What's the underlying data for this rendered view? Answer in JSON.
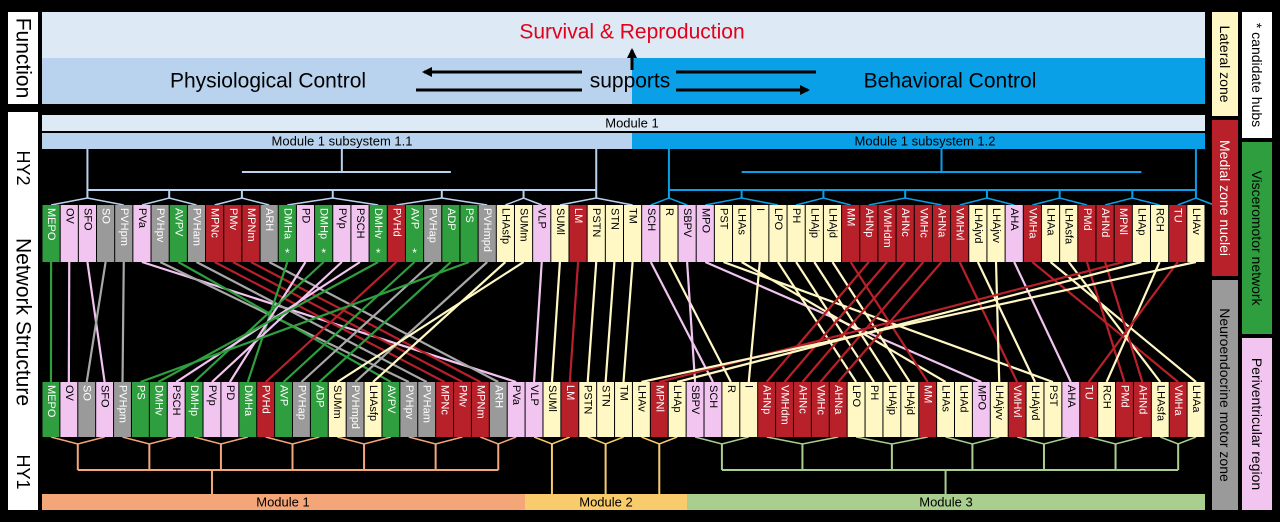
{
  "function_panel": {
    "side_label": "Function",
    "title": "Survival & Reproduction",
    "left": "Physiological Control",
    "middle": "supports",
    "right": "Behavioral Control"
  },
  "network_labels": {
    "hy2": "HY2",
    "network_structure": "Network Structure",
    "hy1": "HY1"
  },
  "hy2_modules": {
    "module": "Module 1",
    "sub1": "Module 1 subsystem 1.1",
    "sub2": "Module 1 subsystem 1.2"
  },
  "hy1_modules": {
    "m1": "Module 1",
    "m2": "Module 2",
    "m3": "Module 3"
  },
  "legend": {
    "candidate_hubs": "* candidate hubs",
    "lateral": "Lateral zone",
    "medial": "Medial zone nuclei",
    "visceromotor": "Visceromotor network",
    "neuroendocrine": "Neuroendocrine motor zone",
    "periventricular": "Periventricular region"
  },
  "colors": {
    "green": "#2e9e3e",
    "pink": "#f2c4f0",
    "gray": "#9a9a9a",
    "red": "#b8202a",
    "cream": "#fff8c4",
    "blue_light": "#b9d3ee",
    "blue_dark": "#0aa0e8",
    "orange": "#f5a679",
    "yellow": "#f8cc6a",
    "sage": "#a8cf8e"
  },
  "hy2_nodes": [
    {
      "name": "MEPO",
      "c": "g"
    },
    {
      "name": "OV",
      "c": "p"
    },
    {
      "name": "SFO",
      "c": "p"
    },
    {
      "name": "SO",
      "c": "a"
    },
    {
      "name": "PVHpm",
      "c": "a"
    },
    {
      "name": "PVa",
      "c": "p"
    },
    {
      "name": "PVHpv",
      "c": "a"
    },
    {
      "name": "AVPV",
      "c": "g"
    },
    {
      "name": "PVHam",
      "c": "a"
    },
    {
      "name": "MPNc",
      "c": "r"
    },
    {
      "name": "PMv",
      "c": "r"
    },
    {
      "name": "MPNm",
      "c": "r"
    },
    {
      "name": "ARH",
      "c": "a"
    },
    {
      "name": "DMHa",
      "c": "g",
      "hub": true
    },
    {
      "name": "PD",
      "c": "p"
    },
    {
      "name": "DMHp",
      "c": "g",
      "hub": true
    },
    {
      "name": "PVp",
      "c": "p"
    },
    {
      "name": "PSCH",
      "c": "p"
    },
    {
      "name": "DMHv",
      "c": "g",
      "hub": true
    },
    {
      "name": "PVHd",
      "c": "r"
    },
    {
      "name": "AVP",
      "c": "g",
      "hub": true
    },
    {
      "name": "PVHap",
      "c": "a"
    },
    {
      "name": "ADP",
      "c": "g"
    },
    {
      "name": "PS",
      "c": "g"
    },
    {
      "name": "PVHmpd",
      "c": "a"
    },
    {
      "name": "LHAsfp",
      "c": "y"
    },
    {
      "name": "SUMm",
      "c": "y"
    },
    {
      "name": "VLP",
      "c": "p"
    },
    {
      "name": "SUMl",
      "c": "y"
    },
    {
      "name": "LM",
      "c": "r"
    },
    {
      "name": "PSTN",
      "c": "y"
    },
    {
      "name": "STN",
      "c": "y"
    },
    {
      "name": "TM",
      "c": "y"
    },
    {
      "name": "SCH",
      "c": "p"
    },
    {
      "name": "R",
      "c": "y"
    },
    {
      "name": "SBPV",
      "c": "p"
    },
    {
      "name": "MPO",
      "c": "p"
    },
    {
      "name": "PST",
      "c": "y"
    },
    {
      "name": "LHAs",
      "c": "y"
    },
    {
      "name": "I",
      "c": "y"
    },
    {
      "name": "LPO",
      "c": "y"
    },
    {
      "name": "PH",
      "c": "y"
    },
    {
      "name": "LHAjp",
      "c": "y"
    },
    {
      "name": "LHAjd",
      "c": "y"
    },
    {
      "name": "MM",
      "c": "r"
    },
    {
      "name": "AHNp",
      "c": "r"
    },
    {
      "name": "VMHdm",
      "c": "r"
    },
    {
      "name": "AHNc",
      "c": "r"
    },
    {
      "name": "VMHc",
      "c": "r"
    },
    {
      "name": "AHNa",
      "c": "r"
    },
    {
      "name": "VMHvl",
      "c": "r"
    },
    {
      "name": "LHAjvd",
      "c": "y"
    },
    {
      "name": "LHAjvv",
      "c": "y"
    },
    {
      "name": "AHA",
      "c": "p"
    },
    {
      "name": "VMHa",
      "c": "r"
    },
    {
      "name": "LHAa",
      "c": "y"
    },
    {
      "name": "LHAsfa",
      "c": "y"
    },
    {
      "name": "PMd",
      "c": "r"
    },
    {
      "name": "AHNd",
      "c": "r"
    },
    {
      "name": "MPNl",
      "c": "r"
    },
    {
      "name": "LHAp",
      "c": "y"
    },
    {
      "name": "RCH",
      "c": "y"
    },
    {
      "name": "TU",
      "c": "r"
    },
    {
      "name": "LHAv",
      "c": "y"
    }
  ],
  "hy1_nodes": [
    {
      "name": "MEPO",
      "c": "g"
    },
    {
      "name": "OV",
      "c": "p"
    },
    {
      "name": "SO",
      "c": "a"
    },
    {
      "name": "SFO",
      "c": "p"
    },
    {
      "name": "PVHpm",
      "c": "a"
    },
    {
      "name": "PS",
      "c": "g"
    },
    {
      "name": "DMHv",
      "c": "g"
    },
    {
      "name": "PSCH",
      "c": "p"
    },
    {
      "name": "DMHp",
      "c": "g"
    },
    {
      "name": "PVp",
      "c": "p"
    },
    {
      "name": "PD",
      "c": "p"
    },
    {
      "name": "DMHa",
      "c": "g"
    },
    {
      "name": "PVHd",
      "c": "r"
    },
    {
      "name": "AVP",
      "c": "g"
    },
    {
      "name": "PVHap",
      "c": "a"
    },
    {
      "name": "ADP",
      "c": "g"
    },
    {
      "name": "SUMm",
      "c": "y"
    },
    {
      "name": "PVHmpd",
      "c": "a"
    },
    {
      "name": "LHAsfp",
      "c": "y"
    },
    {
      "name": "AVPV",
      "c": "g"
    },
    {
      "name": "PVHpv",
      "c": "a"
    },
    {
      "name": "PVHam",
      "c": "a"
    },
    {
      "name": "MPNc",
      "c": "r"
    },
    {
      "name": "PMv",
      "c": "r"
    },
    {
      "name": "MPNm",
      "c": "r"
    },
    {
      "name": "ARH",
      "c": "a"
    },
    {
      "name": "PVa",
      "c": "p"
    },
    {
      "name": "VLP",
      "c": "p"
    },
    {
      "name": "SUMl",
      "c": "y"
    },
    {
      "name": "LM",
      "c": "r"
    },
    {
      "name": "PSTN",
      "c": "y"
    },
    {
      "name": "STN",
      "c": "y"
    },
    {
      "name": "TM",
      "c": "y"
    },
    {
      "name": "LHAv",
      "c": "y"
    },
    {
      "name": "MPNl",
      "c": "r"
    },
    {
      "name": "LHAp",
      "c": "y"
    },
    {
      "name": "SBPV",
      "c": "p"
    },
    {
      "name": "SCH",
      "c": "p"
    },
    {
      "name": "R",
      "c": "y"
    },
    {
      "name": "I",
      "c": "y"
    },
    {
      "name": "AHNp",
      "c": "r"
    },
    {
      "name": "VMHdm",
      "c": "r"
    },
    {
      "name": "AHNc",
      "c": "r"
    },
    {
      "name": "VMHc",
      "c": "r"
    },
    {
      "name": "AHNa",
      "c": "r"
    },
    {
      "name": "LPO",
      "c": "y"
    },
    {
      "name": "PH",
      "c": "y"
    },
    {
      "name": "LHAjp",
      "c": "y"
    },
    {
      "name": "LHAjd",
      "c": "y"
    },
    {
      "name": "MM",
      "c": "r"
    },
    {
      "name": "LHAs",
      "c": "y"
    },
    {
      "name": "LHAd",
      "c": "y"
    },
    {
      "name": "MPO",
      "c": "p"
    },
    {
      "name": "LHAjvv",
      "c": "y"
    },
    {
      "name": "VMHvl",
      "c": "r"
    },
    {
      "name": "LHAjvd",
      "c": "y"
    },
    {
      "name": "PST",
      "c": "y"
    },
    {
      "name": "AHA",
      "c": "p"
    },
    {
      "name": "TU",
      "c": "r"
    },
    {
      "name": "RCH",
      "c": "y"
    },
    {
      "name": "PMd",
      "c": "r"
    },
    {
      "name": "AHNd",
      "c": "r"
    },
    {
      "name": "LHAsfa",
      "c": "y"
    },
    {
      "name": "VMHa",
      "c": "r"
    },
    {
      "name": "LHAa",
      "c": "y"
    }
  ]
}
